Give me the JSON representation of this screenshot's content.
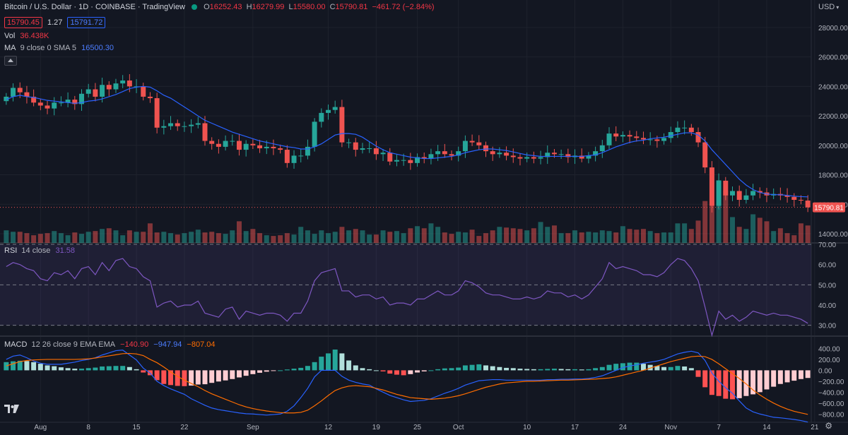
{
  "header": {
    "symbol": "Bitcoin / U.S. Dollar · 1D · COINBASE · TradingView",
    "o_label": "O",
    "o": "16252.43",
    "h_label": "H",
    "h": "16279.99",
    "l_label": "L",
    "l": "15580.00",
    "c_label": "C",
    "c": "15790.81",
    "change": "−461.72 (−2.84%)",
    "bid": "15790.45",
    "spread": "1.27",
    "ask": "15791.72"
  },
  "indicators": {
    "vol_label": "Vol",
    "vol_value": "36.438K",
    "ma_label": "MA",
    "ma_params": "9 close 0 SMA 5",
    "ma_value": "16500.30",
    "rsi_label": "RSI",
    "rsi_params": "14 close",
    "rsi_value": "31.58",
    "macd_label": "MACD",
    "macd_params": "12 26 close 9 EMA EMA",
    "macd_hist": "−140.90",
    "macd_line": "−947.94",
    "macd_signal": "−807.04"
  },
  "currency_label": "USD",
  "last_price_label": "15790.81",
  "colors": {
    "up": "#26a69a",
    "down": "#ef5350",
    "ma": "#2962ff",
    "rsi": "#7e57c2",
    "macd": "#2962ff",
    "signal": "#ff6d00",
    "hist_up_strong": "#26a69a",
    "hist_up_weak": "#b2dfdb",
    "hist_down_strong": "#ff5252",
    "hist_down_weak": "#ffcdd2"
  },
  "icons": {
    "logo": "tradingview-logo-icon",
    "settings": "gear-icon",
    "collapse": "chevron-up-icon"
  },
  "chart_data": [
    {
      "type": "candlestick",
      "title": "Bitcoin / U.S. Dollar · 1D · COINBASE",
      "ylim": [
        14000,
        29000
      ],
      "yticks": [
        14000,
        16000,
        18000,
        20000,
        22000,
        24000,
        26000,
        28000
      ],
      "ytick_labels": [
        "14000.00",
        "16000.00",
        "18000.00",
        "20000.00",
        "22000.00",
        "24000.00",
        "26000.00",
        "28000.00"
      ],
      "x_labels": [
        "Aug",
        "8",
        "15",
        "22",
        "Sep",
        "12",
        "19",
        "25",
        "Oct",
        "10",
        "17",
        "24",
        "Nov",
        "7",
        "14",
        "21"
      ],
      "x_label_days": [
        5,
        12,
        19,
        26,
        36,
        47,
        54,
        60,
        66,
        76,
        83,
        90,
        97,
        104,
        111,
        118
      ],
      "closes": [
        23300,
        23900,
        23600,
        23300,
        22900,
        22700,
        22500,
        22900,
        22900,
        23100,
        22800,
        23500,
        23800,
        23300,
        24100,
        23800,
        24200,
        24400,
        24000,
        24000,
        23300,
        23200,
        21200,
        21300,
        21500,
        21300,
        21300,
        21400,
        21500,
        20300,
        20100,
        19900,
        20300,
        20300,
        19700,
        20100,
        20000,
        19800,
        19900,
        19800,
        19700,
        18800,
        19300,
        19300,
        19900,
        21600,
        22200,
        22400,
        22600,
        20200,
        20200,
        19700,
        19800,
        19800,
        19400,
        19500,
        18900,
        19000,
        19000,
        18800,
        19200,
        19100,
        19400,
        19600,
        19400,
        19300,
        19600,
        20300,
        20200,
        20000,
        19600,
        19400,
        19500,
        19300,
        19200,
        19100,
        19200,
        19100,
        19200,
        19500,
        19400,
        19400,
        19200,
        19300,
        19100,
        19300,
        19600,
        20000,
        20800,
        20600,
        20700,
        20600,
        20500,
        20400,
        20400,
        20300,
        20500,
        20900,
        21200,
        21200,
        20900,
        20200,
        18500,
        15900,
        17600,
        16600,
        16900,
        16300,
        16600,
        16900,
        16800,
        16600,
        16700,
        16600,
        16500,
        16300,
        16250,
        15791
      ],
      "ma": [
        23100,
        23300,
        23400,
        23300,
        23250,
        23150,
        23050,
        23000,
        22950,
        22900,
        22850,
        22900,
        23000,
        23050,
        23150,
        23300,
        23450,
        23650,
        23850,
        23950,
        24000,
        23950,
        23700,
        23400,
        23200,
        22900,
        22600,
        22300,
        22000,
        21700,
        21500,
        21300,
        21100,
        20900,
        20750,
        20600,
        20450,
        20300,
        20200,
        20100,
        20000,
        19900,
        19850,
        19750,
        19750,
        19900,
        20100,
        20400,
        20700,
        20800,
        20800,
        20750,
        20550,
        20250,
        19950,
        19700,
        19500,
        19400,
        19300,
        19200,
        19150,
        19100,
        19100,
        19150,
        19200,
        19250,
        19350,
        19500,
        19600,
        19700,
        19750,
        19750,
        19700,
        19650,
        19550,
        19450,
        19350,
        19300,
        19250,
        19250,
        19250,
        19250,
        19250,
        19250,
        19250,
        19300,
        19350,
        19500,
        19700,
        19900,
        20050,
        20200,
        20300,
        20350,
        20450,
        20500,
        20550,
        20650,
        20750,
        20850,
        20850,
        20700,
        20300,
        19700,
        19200,
        18700,
        18200,
        17700,
        17300,
        17000,
        16800,
        16700,
        16650,
        16650,
        16600,
        16550,
        16520,
        16500
      ]
    },
    {
      "type": "bar",
      "title": "Vol",
      "note": "relative volume, last value 36.438K",
      "values": [
        18,
        16,
        16,
        14,
        11,
        13,
        14,
        17,
        14,
        11,
        15,
        13,
        16,
        17,
        20,
        21,
        18,
        11,
        18,
        16,
        16,
        28,
        15,
        16,
        14,
        12,
        14,
        16,
        19,
        15,
        16,
        14,
        13,
        18,
        31,
        17,
        20,
        14,
        11,
        10,
        11,
        14,
        12,
        23,
        18,
        13,
        18,
        14,
        16,
        23,
        18,
        20,
        18,
        12,
        12,
        18,
        16,
        17,
        14,
        21,
        24,
        21,
        28,
        23,
        15,
        13,
        16,
        15,
        19,
        10,
        14,
        18,
        23,
        22,
        21,
        20,
        18,
        21,
        30,
        23,
        25,
        14,
        14,
        18,
        15,
        16,
        15,
        18,
        17,
        15,
        24,
        20,
        19,
        20,
        17,
        14,
        15,
        15,
        28,
        28,
        20,
        32,
        60,
        61,
        90,
        75,
        37,
        23,
        20,
        41,
        36,
        31,
        17,
        21,
        14,
        11,
        28,
        25
      ]
    },
    {
      "type": "line",
      "title": "RSI",
      "ylim": [
        25,
        70
      ],
      "yticks": [
        30,
        40,
        50,
        60,
        70
      ],
      "ytick_labels": [
        "30.00",
        "40.00",
        "50.00",
        "60.00",
        "70.00"
      ],
      "bands": [
        30,
        50,
        70
      ],
      "values": [
        59,
        61,
        60,
        58,
        57,
        53,
        52,
        56,
        55,
        57,
        53,
        58,
        59,
        55,
        61,
        57,
        62,
        63,
        59,
        58,
        54,
        52,
        39,
        41,
        42,
        39,
        40,
        40,
        42,
        36,
        35,
        34,
        38,
        39,
        33,
        37,
        36,
        35,
        36,
        36,
        35,
        32,
        36,
        36,
        42,
        52,
        56,
        57,
        58,
        47,
        47,
        44,
        45,
        45,
        43,
        44,
        40,
        41,
        41,
        40,
        43,
        43,
        45,
        47,
        45,
        45,
        47,
        52,
        51,
        49,
        46,
        45,
        45,
        44,
        43,
        43,
        44,
        43,
        44,
        47,
        46,
        46,
        44,
        45,
        43,
        45,
        49,
        53,
        61,
        58,
        59,
        58,
        57,
        55,
        55,
        54,
        56,
        60,
        63,
        62,
        58,
        52,
        39,
        25,
        37,
        33,
        35,
        32,
        34,
        37,
        36,
        35,
        36,
        35,
        35,
        34,
        33,
        31
      ]
    },
    {
      "type": "bar+line",
      "title": "MACD",
      "ylim": [
        -900,
        600
      ],
      "yticks": [
        -800,
        -600,
        -400,
        -200,
        0,
        200,
        400
      ],
      "ytick_labels": [
        "−800.00",
        "−600.00",
        "−400.00",
        "−200.00",
        "0.00",
        "200.00",
        "400.00"
      ],
      "hist": [
        150,
        165,
        175,
        170,
        150,
        120,
        90,
        75,
        55,
        40,
        30,
        30,
        40,
        50,
        70,
        75,
        80,
        80,
        60,
        20,
        -40,
        -90,
        -180,
        -250,
        -270,
        -285,
        -290,
        -280,
        -260,
        -255,
        -230,
        -205,
        -185,
        -160,
        -130,
        -100,
        -70,
        -45,
        -25,
        -10,
        0,
        15,
        30,
        45,
        80,
        150,
        250,
        310,
        380,
        310,
        180,
        90,
        40,
        20,
        0,
        -20,
        -60,
        -80,
        -90,
        -70,
        -40,
        -20,
        0,
        20,
        35,
        40,
        50,
        90,
        100,
        110,
        90,
        75,
        60,
        45,
        40,
        30,
        25,
        20,
        20,
        25,
        30,
        25,
        20,
        20,
        15,
        20,
        40,
        60,
        100,
        120,
        130,
        140,
        140,
        120,
        100,
        80,
        60,
        60,
        80,
        70,
        40,
        -120,
        -310,
        -450,
        -470,
        -520,
        -530,
        -510,
        -470,
        -440,
        -400,
        -350,
        -300,
        -250,
        -220,
        -190,
        -160,
        -140
      ],
      "macd": [
        200,
        260,
        280,
        230,
        170,
        130,
        110,
        110,
        110,
        130,
        150,
        180,
        200,
        230,
        280,
        320,
        360,
        370,
        280,
        190,
        40,
        -50,
        -200,
        -280,
        -340,
        -390,
        -440,
        -520,
        -580,
        -640,
        -690,
        -720,
        -740,
        -760,
        -780,
        -795,
        -800,
        -810,
        -820,
        -810,
        -800,
        -750,
        -650,
        -500,
        -330,
        -120,
        0,
        0,
        0,
        -110,
        -180,
        -220,
        -250,
        -270,
        -340,
        -400,
        -460,
        -500,
        -540,
        -570,
        -560,
        -550,
        -520,
        -470,
        -420,
        -380,
        -330,
        -270,
        -230,
        -190,
        -180,
        -170,
        -170,
        -180,
        -180,
        -180,
        -180,
        -180,
        -180,
        -170,
        -170,
        -165,
        -165,
        -160,
        -160,
        -150,
        -130,
        -100,
        -50,
        0,
        50,
        80,
        100,
        130,
        150,
        170,
        200,
        250,
        300,
        330,
        350,
        320,
        180,
        -50,
        -200,
        -320,
        -420,
        -560,
        -690,
        -760,
        -800,
        -830,
        -860,
        -870,
        -885,
        -900,
        -920,
        -948
      ],
      "signal": [
        80,
        120,
        160,
        180,
        190,
        195,
        200,
        200,
        200,
        200,
        200,
        205,
        210,
        225,
        245,
        265,
        285,
        305,
        310,
        300,
        270,
        200,
        140,
        60,
        -30,
        -110,
        -180,
        -240,
        -300,
        -370,
        -430,
        -480,
        -530,
        -580,
        -630,
        -670,
        -700,
        -725,
        -745,
        -760,
        -775,
        -780,
        -780,
        -770,
        -730,
        -650,
        -560,
        -460,
        -370,
        -320,
        -290,
        -280,
        -290,
        -300,
        -330,
        -360,
        -400,
        -440,
        -470,
        -500,
        -510,
        -520,
        -530,
        -520,
        -510,
        -490,
        -465,
        -430,
        -390,
        -350,
        -310,
        -280,
        -250,
        -230,
        -220,
        -210,
        -200,
        -200,
        -195,
        -190,
        -185,
        -180,
        -180,
        -175,
        -170,
        -165,
        -160,
        -150,
        -140,
        -120,
        -90,
        -60,
        -30,
        0,
        40,
        80,
        120,
        160,
        190,
        220,
        250,
        260,
        250,
        200,
        120,
        30,
        -60,
        -150,
        -250,
        -360,
        -450,
        -530,
        -600,
        -660,
        -710,
        -750,
        -780,
        -807
      ]
    }
  ]
}
